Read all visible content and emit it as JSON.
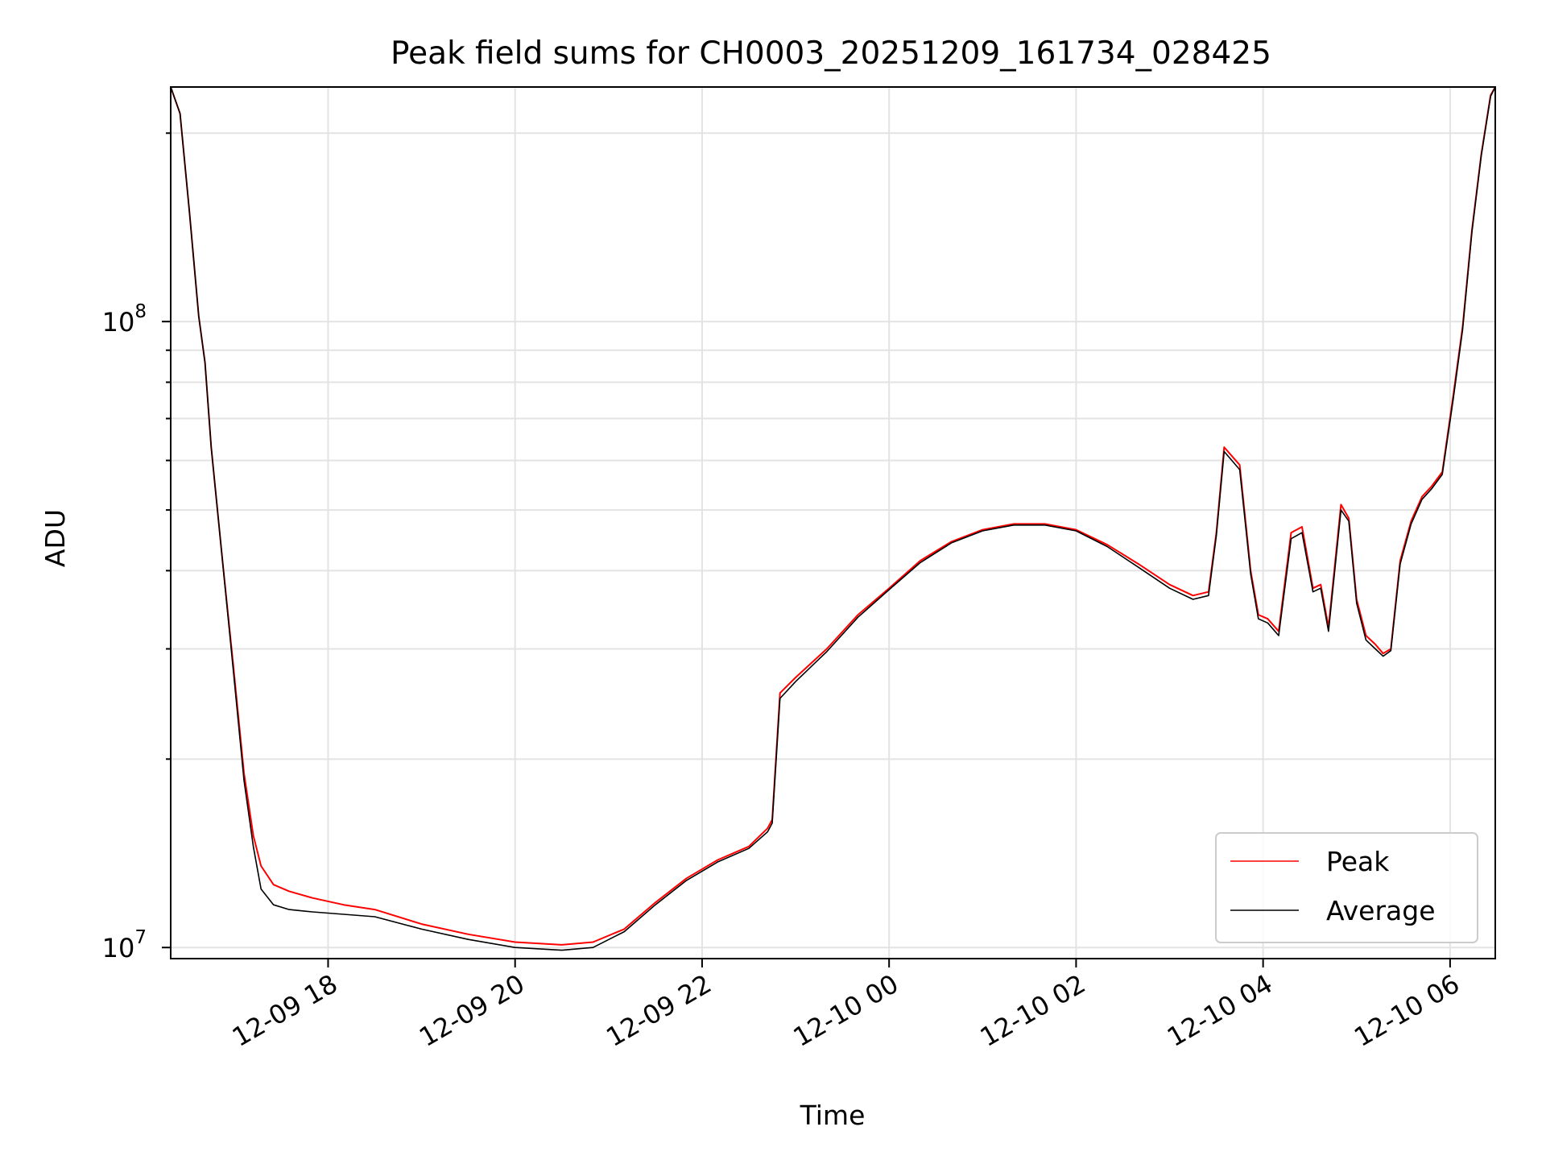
{
  "chart_data": {
    "type": "line",
    "title": "Peak field sums for CH0003_20251209_161734_028425",
    "xlabel": "Time",
    "ylabel": "ADU",
    "yscale": "log",
    "ylim": [
      9600000,
      237000000
    ],
    "xlim": [
      "2025-12-09 16:19",
      "2025-12-10 06:29"
    ],
    "x_ticks": [
      {
        "x": "2025-12-09 18:00",
        "label": "12-09 18"
      },
      {
        "x": "2025-12-09 20:00",
        "label": "12-09 20"
      },
      {
        "x": "2025-12-09 22:00",
        "label": "12-09 22"
      },
      {
        "x": "2025-12-10 00:00",
        "label": "12-10 00"
      },
      {
        "x": "2025-12-10 02:00",
        "label": "12-10 02"
      },
      {
        "x": "2025-12-10 04:00",
        "label": "12-10 04"
      },
      {
        "x": "2025-12-10 06:00",
        "label": "12-10 06"
      }
    ],
    "y_ticks": [
      {
        "y": 10000000,
        "base": "10",
        "exp": "7"
      },
      {
        "y": 100000000,
        "base": "10",
        "exp": "8"
      }
    ],
    "grid": true,
    "legend_position": "lower-right",
    "series": [
      {
        "name": "Peak",
        "color": "#ff0000",
        "x": [
          "2025-12-09 16:19",
          "2025-12-09 16:25",
          "2025-12-09 16:31",
          "2025-12-09 16:37",
          "2025-12-09 16:41",
          "2025-12-09 16:45",
          "2025-12-09 16:52",
          "2025-12-09 16:59",
          "2025-12-09 17:06",
          "2025-12-09 17:12",
          "2025-12-09 17:17",
          "2025-12-09 17:25",
          "2025-12-09 17:35",
          "2025-12-09 17:50",
          "2025-12-09 18:10",
          "2025-12-09 18:30",
          "2025-12-09 19:00",
          "2025-12-09 19:30",
          "2025-12-09 20:00",
          "2025-12-09 20:30",
          "2025-12-09 20:50",
          "2025-12-09 21:10",
          "2025-12-09 21:30",
          "2025-12-09 21:50",
          "2025-12-09 22:10",
          "2025-12-09 22:30",
          "2025-12-09 22:42",
          "2025-12-09 22:45",
          "2025-12-09 22:50",
          "2025-12-09 23:00",
          "2025-12-09 23:20",
          "2025-12-09 23:40",
          "2025-12-10 00:00",
          "2025-12-10 00:20",
          "2025-12-10 00:40",
          "2025-12-10 01:00",
          "2025-12-10 01:20",
          "2025-12-10 01:40",
          "2025-12-10 02:00",
          "2025-12-10 02:20",
          "2025-12-10 02:40",
          "2025-12-10 03:00",
          "2025-12-10 03:15",
          "2025-12-10 03:25",
          "2025-12-10 03:30",
          "2025-12-10 03:35",
          "2025-12-10 03:45",
          "2025-12-10 03:52",
          "2025-12-10 03:57",
          "2025-12-10 04:03",
          "2025-12-10 04:10",
          "2025-12-10 04:18",
          "2025-12-10 04:25",
          "2025-12-10 04:32",
          "2025-12-10 04:37",
          "2025-12-10 04:42",
          "2025-12-10 04:50",
          "2025-12-10 04:55",
          "2025-12-10 05:00",
          "2025-12-10 05:06",
          "2025-12-10 05:12",
          "2025-12-10 05:17",
          "2025-12-10 05:22",
          "2025-12-10 05:28",
          "2025-12-10 05:35",
          "2025-12-10 05:42",
          "2025-12-10 05:48",
          "2025-12-10 05:55",
          "2025-12-10 06:02",
          "2025-12-10 06:08",
          "2025-12-10 06:14",
          "2025-12-10 06:20",
          "2025-12-10 06:26",
          "2025-12-10 06:29"
        ],
        "y": [
          237000000,
          215000000,
          150000000,
          102000000,
          86000000,
          63000000,
          42000000,
          28500000,
          19000000,
          15100000,
          13500000,
          12600000,
          12300000,
          12000000,
          11700000,
          11500000,
          10900000,
          10500000,
          10200000,
          10100000,
          10200000,
          10700000,
          11800000,
          12900000,
          13800000,
          14500000,
          15500000,
          16000000,
          25500000,
          27000000,
          30000000,
          34000000,
          37500000,
          41500000,
          44500000,
          46500000,
          47500000,
          47500000,
          46500000,
          44000000,
          41000000,
          38000000,
          36500000,
          37000000,
          46000000,
          63000000,
          59000000,
          40000000,
          34000000,
          33500000,
          32000000,
          46000000,
          47000000,
          37500000,
          38000000,
          32500000,
          51000000,
          48500000,
          36000000,
          31500000,
          30500000,
          29500000,
          30000000,
          41500000,
          48000000,
          52500000,
          54500000,
          57500000,
          76000000,
          98000000,
          140000000,
          185000000,
          230000000,
          237000000
        ]
      },
      {
        "name": "Average",
        "color": "#000000",
        "x": [
          "2025-12-09 16:19",
          "2025-12-09 16:25",
          "2025-12-09 16:31",
          "2025-12-09 16:37",
          "2025-12-09 16:41",
          "2025-12-09 16:45",
          "2025-12-09 16:52",
          "2025-12-09 16:59",
          "2025-12-09 17:06",
          "2025-12-09 17:12",
          "2025-12-09 17:17",
          "2025-12-09 17:25",
          "2025-12-09 17:35",
          "2025-12-09 17:50",
          "2025-12-09 18:10",
          "2025-12-09 18:30",
          "2025-12-09 19:00",
          "2025-12-09 19:30",
          "2025-12-09 20:00",
          "2025-12-09 20:30",
          "2025-12-09 20:50",
          "2025-12-09 21:10",
          "2025-12-09 21:30",
          "2025-12-09 21:50",
          "2025-12-09 22:10",
          "2025-12-09 22:30",
          "2025-12-09 22:42",
          "2025-12-09 22:45",
          "2025-12-09 22:50",
          "2025-12-09 23:00",
          "2025-12-09 23:20",
          "2025-12-09 23:40",
          "2025-12-10 00:00",
          "2025-12-10 00:20",
          "2025-12-10 00:40",
          "2025-12-10 01:00",
          "2025-12-10 01:20",
          "2025-12-10 01:40",
          "2025-12-10 02:00",
          "2025-12-10 02:20",
          "2025-12-10 02:40",
          "2025-12-10 03:00",
          "2025-12-10 03:15",
          "2025-12-10 03:25",
          "2025-12-10 03:30",
          "2025-12-10 03:35",
          "2025-12-10 03:45",
          "2025-12-10 03:52",
          "2025-12-10 03:57",
          "2025-12-10 04:03",
          "2025-12-10 04:10",
          "2025-12-10 04:18",
          "2025-12-10 04:25",
          "2025-12-10 04:32",
          "2025-12-10 04:37",
          "2025-12-10 04:42",
          "2025-12-10 04:50",
          "2025-12-10 04:55",
          "2025-12-10 05:00",
          "2025-12-10 05:06",
          "2025-12-10 05:12",
          "2025-12-10 05:17",
          "2025-12-10 05:22",
          "2025-12-10 05:28",
          "2025-12-10 05:35",
          "2025-12-10 05:42",
          "2025-12-10 05:48",
          "2025-12-10 05:55",
          "2025-12-10 06:02",
          "2025-12-10 06:08",
          "2025-12-10 06:14",
          "2025-12-10 06:20",
          "2025-12-10 06:26",
          "2025-12-10 06:29"
        ],
        "y": [
          237000000,
          215000000,
          150000000,
          102000000,
          86000000,
          63000000,
          42000000,
          28000000,
          18500000,
          14500000,
          12400000,
          11700000,
          11500000,
          11400000,
          11300000,
          11200000,
          10700000,
          10300000,
          10000000,
          9900000,
          10000000,
          10600000,
          11700000,
          12800000,
          13700000,
          14400000,
          15300000,
          15800000,
          25000000,
          26600000,
          29700000,
          33700000,
          37300000,
          41200000,
          44300000,
          46300000,
          47300000,
          47300000,
          46300000,
          43700000,
          40500000,
          37500000,
          36000000,
          36500000,
          45500000,
          62000000,
          58000000,
          39500000,
          33500000,
          33000000,
          31500000,
          45000000,
          46000000,
          37000000,
          37500000,
          32000000,
          50000000,
          48000000,
          35500000,
          31000000,
          30000000,
          29200000,
          29800000,
          41000000,
          47500000,
          52000000,
          54000000,
          57000000,
          75000000,
          97000000,
          139000000,
          184000000,
          229000000,
          237000000
        ]
      }
    ]
  }
}
